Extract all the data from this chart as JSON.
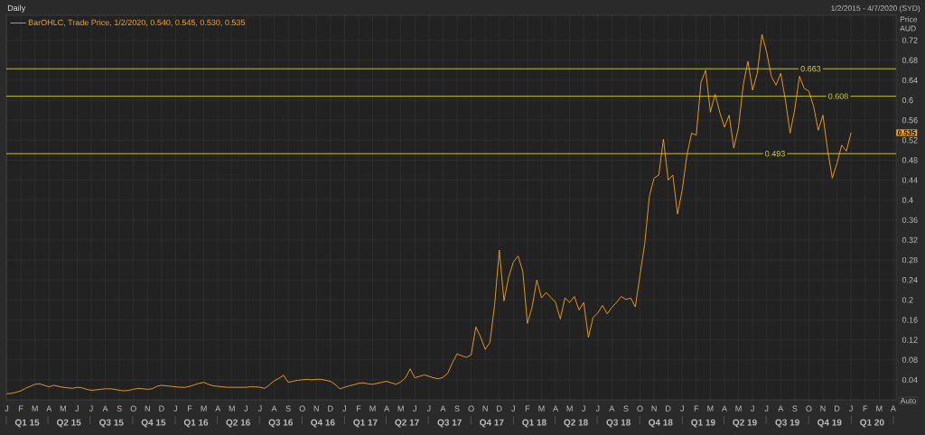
{
  "chart_data": {
    "type": "line",
    "title": "Daily",
    "subtitle": "1/2/2015 - 4/7/2020 (SYD)",
    "ylabel": "Price AUD",
    "categories": [
      "J",
      null,
      null,
      "F",
      null,
      null,
      "M",
      null,
      null,
      "A",
      null,
      null,
      "M",
      null,
      null,
      "J",
      null,
      null,
      "J",
      null,
      null,
      "A",
      null,
      null,
      "S",
      null,
      null,
      "O",
      null,
      null,
      "N",
      null,
      null,
      "D",
      null,
      null,
      "J",
      null,
      null,
      "F",
      null,
      null,
      "M",
      null,
      null,
      "A",
      null,
      null,
      "M",
      null,
      null,
      "J",
      null,
      null,
      "J",
      null,
      null,
      "A",
      null,
      null,
      "S",
      null,
      null,
      "O",
      null,
      null,
      "N",
      null,
      null,
      "D",
      null,
      null,
      "J",
      null,
      null,
      "F",
      null,
      null,
      "M",
      null,
      null,
      "A",
      null,
      null,
      "M",
      null,
      null,
      "J",
      null,
      null,
      "J",
      null,
      null,
      "A",
      null,
      null,
      "S",
      null,
      null,
      "O",
      null,
      null,
      "N",
      null,
      null,
      "D",
      null,
      null,
      "J",
      null,
      null,
      "F",
      null,
      null,
      "M",
      null,
      null,
      "A",
      null,
      null,
      "M",
      null,
      null,
      "J",
      null,
      null,
      "J",
      null,
      null,
      "A",
      null,
      null,
      "S",
      null,
      null,
      "O",
      null,
      null,
      "N",
      null,
      null,
      "D",
      null,
      null,
      "J",
      null,
      null,
      "F",
      null,
      null,
      "M",
      null,
      null,
      "A",
      null,
      null,
      "M",
      null,
      null,
      "J",
      null,
      null,
      "J",
      null,
      null,
      "A",
      null,
      null,
      "S",
      null,
      null,
      "O",
      null,
      null,
      "N",
      null,
      null,
      "D",
      null,
      null,
      "J",
      null,
      null,
      "F",
      null,
      null,
      "M",
      null,
      null,
      "A"
    ],
    "series": [
      {
        "name": "BarOHLC, Trade Price, 1/2/2020, 0.540, 0.545, 0.530, 0.535",
        "color": "#f7a11a",
        "values": [
          0.012,
          0.013,
          0.015,
          0.018,
          0.023,
          0.027,
          0.031,
          0.032,
          0.029,
          0.026,
          0.029,
          0.027,
          0.025,
          0.024,
          0.023,
          0.025,
          0.024,
          0.021,
          0.019,
          0.02,
          0.021,
          0.022,
          0.022,
          0.021,
          0.019,
          0.018,
          0.019,
          0.021,
          0.023,
          0.022,
          0.021,
          0.022,
          0.027,
          0.029,
          0.028,
          0.027,
          0.026,
          0.025,
          0.025,
          0.027,
          0.03,
          0.033,
          0.035,
          0.031,
          0.028,
          0.027,
          0.026,
          0.025,
          0.025,
          0.025,
          0.025,
          0.025,
          0.026,
          0.026,
          0.025,
          0.023,
          0.03,
          0.038,
          0.043,
          0.049,
          0.035,
          0.037,
          0.039,
          0.04,
          0.041,
          0.04,
          0.041,
          0.041,
          0.039,
          0.037,
          0.031,
          0.022,
          0.025,
          0.028,
          0.03,
          0.033,
          0.034,
          0.032,
          0.031,
          0.033,
          0.035,
          0.037,
          0.034,
          0.031,
          0.036,
          0.044,
          0.062,
          0.044,
          0.047,
          0.05,
          0.047,
          0.044,
          0.042,
          0.045,
          0.053,
          0.074,
          0.092,
          0.088,
          0.085,
          0.09,
          0.146,
          0.126,
          0.101,
          0.115,
          0.189,
          0.3,
          0.198,
          0.246,
          0.276,
          0.288,
          0.258,
          0.153,
          0.186,
          0.24,
          0.204,
          0.215,
          0.205,
          0.195,
          0.162,
          0.204,
          0.195,
          0.207,
          0.18,
          0.195,
          0.125,
          0.165,
          0.174,
          0.189,
          0.172,
          0.185,
          0.195,
          0.207,
          0.201,
          0.204,
          0.186,
          0.25,
          0.312,
          0.408,
          0.444,
          0.45,
          0.522,
          0.44,
          0.45,
          0.372,
          0.42,
          0.49,
          0.534,
          0.53,
          0.636,
          0.66,
          0.576,
          0.612,
          0.576,
          0.546,
          0.57,
          0.504,
          0.546,
          0.63,
          0.678,
          0.62,
          0.654,
          0.732,
          0.696,
          0.648,
          0.63,
          0.654,
          0.6,
          0.534,
          0.582,
          0.648,
          0.624,
          0.618,
          0.588,
          0.54,
          0.57,
          0.5,
          0.444,
          0.474,
          0.51,
          0.498,
          0.535,
          null,
          null,
          null,
          null,
          null,
          null,
          null,
          null,
          null
        ]
      }
    ],
    "x2lim": [
      "2015-01-01",
      "2020-04-07"
    ],
    "x2ticks": [
      {
        "value": "2015-01-01",
        "label": null
      },
      {
        "value": "2015-02-15",
        "label": "Q1 15"
      },
      {
        "value": "2015-04-01",
        "label": null
      },
      {
        "value": "2015-05-16",
        "label": "Q2 15"
      },
      {
        "value": "2015-07-01",
        "label": null
      },
      {
        "value": "2015-08-16",
        "label": "Q3 15"
      },
      {
        "value": "2015-10-01",
        "label": null
      },
      {
        "value": "2015-11-15",
        "label": "Q4 15"
      },
      {
        "value": "2016-01-01",
        "label": null
      },
      {
        "value": "2016-02-15",
        "label": "Q1 16"
      },
      {
        "value": "2016-04-01",
        "label": null
      },
      {
        "value": "2016-05-16",
        "label": "Q2 16"
      },
      {
        "value": "2016-07-01",
        "label": null
      },
      {
        "value": "2016-08-16",
        "label": "Q3 16"
      },
      {
        "value": "2016-10-01",
        "label": null
      },
      {
        "value": "2016-11-15",
        "label": "Q4 16"
      },
      {
        "value": "2017-01-01",
        "label": null
      },
      {
        "value": "2017-02-15",
        "label": "Q1 17"
      },
      {
        "value": "2017-04-01",
        "label": null
      },
      {
        "value": "2017-05-16",
        "label": "Q2 17"
      },
      {
        "value": "2017-07-01",
        "label": null
      },
      {
        "value": "2017-08-16",
        "label": "Q3 17"
      },
      {
        "value": "2017-10-01",
        "label": null
      },
      {
        "value": "2017-11-15",
        "label": "Q4 17"
      },
      {
        "value": "2018-01-01",
        "label": null
      },
      {
        "value": "2018-02-15",
        "label": "Q1 18"
      },
      {
        "value": "2018-04-01",
        "label": null
      },
      {
        "value": "2018-05-16",
        "label": "Q2 18"
      },
      {
        "value": "2018-07-01",
        "label": null
      },
      {
        "value": "2018-08-16",
        "label": "Q3 18"
      },
      {
        "value": "2018-10-01",
        "label": null
      },
      {
        "value": "2018-11-15",
        "label": "Q4 18"
      },
      {
        "value": "2019-01-01",
        "label": null
      },
      {
        "value": "2019-02-15",
        "label": "Q1 19"
      },
      {
        "value": "2019-04-01",
        "label": null
      },
      {
        "value": "2019-05-16",
        "label": "Q2 19"
      },
      {
        "value": "2019-07-01",
        "label": null
      },
      {
        "value": "2019-08-16",
        "label": "Q3 19"
      },
      {
        "value": "2019-10-01",
        "label": null
      },
      {
        "value": "2019-11-15",
        "label": "Q4 19"
      },
      {
        "value": "2020-01-01",
        "label": null
      },
      {
        "value": "2020-02-15",
        "label": "Q1 20"
      },
      {
        "value": "2020-04-01",
        "label": null
      }
    ],
    "ylim": [
      0,
      0.77
    ],
    "yticks": [
      0.04,
      0.08,
      0.12,
      0.16,
      0.2,
      0.24,
      0.28,
      0.32,
      0.36,
      0.4,
      0.44,
      0.48,
      0.52,
      0.56,
      0.6,
      0.64,
      0.68,
      0.72
    ],
    "ref_lines": [
      {
        "axis": "y",
        "value": 0.663,
        "label": "0.663",
        "color": "#d6d23a"
      },
      {
        "axis": "y",
        "value": 0.608,
        "label": "0.608",
        "color": "#d6d23a"
      },
      {
        "axis": "y",
        "value": 0.493,
        "label": "0.493",
        "color": "#d6d23a"
      }
    ],
    "annotations": [
      {
        "text": "0.535",
        "y": 0.535
      },
      "Auto"
    ],
    "grid": true,
    "legend": "top left",
    "marker": "none",
    "line_style": "solid"
  }
}
